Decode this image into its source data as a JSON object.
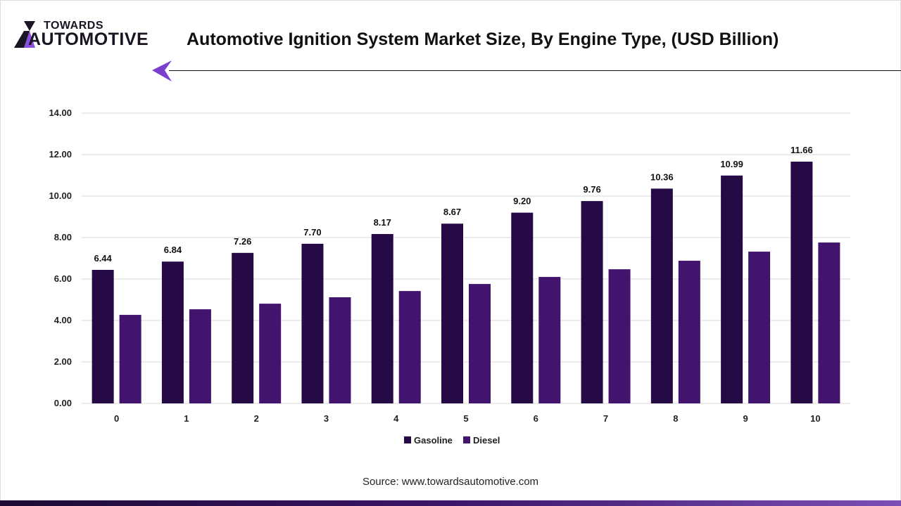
{
  "header": {
    "logo_top": "TOWARDS",
    "logo_bottom": "AUTOMOTIVE",
    "title": "Automotive Ignition System Market Size, By Engine Type, (USD Billion)"
  },
  "source": "Source: www.towardsautomotive.com",
  "chart_data": {
    "type": "bar",
    "categories": [
      "0",
      "1",
      "2",
      "3",
      "4",
      "5",
      "6",
      "7",
      "8",
      "9",
      "10"
    ],
    "series": [
      {
        "name": "Gasoline",
        "color": "#250a45",
        "values": [
          6.44,
          6.84,
          7.26,
          7.7,
          8.17,
          8.67,
          9.2,
          9.76,
          10.36,
          10.99,
          11.66
        ],
        "labels": [
          "6.44",
          "6.84",
          "7.26",
          "7.70",
          "8.17",
          "8.67",
          "9.20",
          "9.76",
          "10.36",
          "10.99",
          "11.66"
        ]
      },
      {
        "name": "Diesel",
        "color": "#42146e",
        "values": [
          4.27,
          4.54,
          4.81,
          5.12,
          5.42,
          5.76,
          6.1,
          6.47,
          6.88,
          7.32,
          7.76
        ]
      }
    ],
    "yticks": [
      "0.00",
      "2.00",
      "4.00",
      "6.00",
      "8.00",
      "10.00",
      "12.00",
      "14.00"
    ],
    "ylim": [
      0,
      14
    ],
    "grid": true,
    "legend": "bottom",
    "title": "Automotive Ignition System Market Size, By Engine Type, (USD Billion)"
  }
}
